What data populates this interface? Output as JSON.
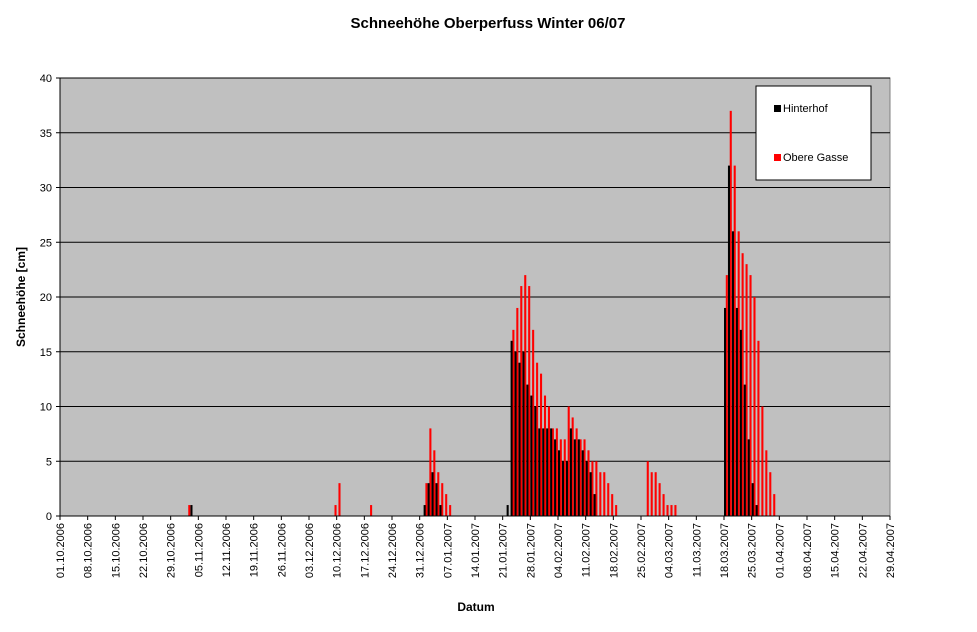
{
  "chart_data": {
    "type": "bar",
    "title": "Schneehöhe Oberperfuss Winter 06/07",
    "xlabel": "Datum",
    "ylabel": "Schneehöhe [cm]",
    "ylim": [
      0,
      40
    ],
    "yticks": [
      0,
      5,
      10,
      15,
      20,
      25,
      30,
      35,
      40
    ],
    "grid": true,
    "legend_position": "top-right",
    "x_start": "01.10.2006",
    "x_end": "29.04.2007",
    "x_ticks": [
      "01.10.2006",
      "08.10.2006",
      "15.10.2006",
      "22.10.2006",
      "29.10.2006",
      "05.11.2006",
      "12.11.2006",
      "19.11.2006",
      "26.11.2006",
      "03.12.2006",
      "10.12.2006",
      "17.12.2006",
      "24.12.2006",
      "31.12.2006",
      "07.01.2007",
      "14.01.2007",
      "21.01.2007",
      "28.01.2007",
      "04.02.2007",
      "11.02.2007",
      "18.02.2007",
      "25.02.2007",
      "04.03.2007",
      "11.03.2007",
      "18.03.2007",
      "25.03.2007",
      "01.04.2007",
      "08.04.2007",
      "15.04.2007",
      "22.04.2007",
      "29.04.2007"
    ],
    "series": [
      {
        "name": "Hinterhof",
        "color": "#000000",
        "points": [
          [
            "03.11.2006",
            1
          ],
          [
            "01.01.2007",
            1
          ],
          [
            "02.01.2007",
            3
          ],
          [
            "03.01.2007",
            4
          ],
          [
            "04.01.2007",
            3
          ],
          [
            "05.01.2007",
            1
          ],
          [
            "22.01.2007",
            1
          ],
          [
            "23.01.2007",
            16
          ],
          [
            "24.01.2007",
            15
          ],
          [
            "25.01.2007",
            14
          ],
          [
            "26.01.2007",
            15
          ],
          [
            "27.01.2007",
            12
          ],
          [
            "28.01.2007",
            11
          ],
          [
            "29.01.2007",
            10
          ],
          [
            "30.01.2007",
            8
          ],
          [
            "31.01.2007",
            8
          ],
          [
            "01.02.2007",
            8
          ],
          [
            "02.02.2007",
            8
          ],
          [
            "03.02.2007",
            7
          ],
          [
            "04.02.2007",
            6
          ],
          [
            "05.02.2007",
            5
          ],
          [
            "06.02.2007",
            5
          ],
          [
            "07.02.2007",
            8
          ],
          [
            "08.02.2007",
            7
          ],
          [
            "09.02.2007",
            7
          ],
          [
            "10.02.2007",
            6
          ],
          [
            "11.02.2007",
            5
          ],
          [
            "12.02.2007",
            4
          ],
          [
            "13.02.2007",
            2
          ],
          [
            "18.03.2007",
            19
          ],
          [
            "19.03.2007",
            32
          ],
          [
            "20.03.2007",
            26
          ],
          [
            "21.03.2007",
            19
          ],
          [
            "22.03.2007",
            17
          ],
          [
            "23.03.2007",
            12
          ],
          [
            "24.03.2007",
            7
          ],
          [
            "25.03.2007",
            3
          ],
          [
            "26.03.2007",
            1
          ]
        ]
      },
      {
        "name": "Obere Gasse",
        "color": "#ff0000",
        "points": [
          [
            "02.11.2006",
            1
          ],
          [
            "09.12.2006",
            1
          ],
          [
            "10.12.2006",
            3
          ],
          [
            "18.12.2006",
            1
          ],
          [
            "01.01.2007",
            3
          ],
          [
            "02.01.2007",
            8
          ],
          [
            "03.01.2007",
            6
          ],
          [
            "04.01.2007",
            4
          ],
          [
            "05.01.2007",
            3
          ],
          [
            "06.01.2007",
            2
          ],
          [
            "07.01.2007",
            1
          ],
          [
            "23.01.2007",
            17
          ],
          [
            "24.01.2007",
            19
          ],
          [
            "25.01.2007",
            21
          ],
          [
            "26.01.2007",
            22
          ],
          [
            "27.01.2007",
            21
          ],
          [
            "28.01.2007",
            17
          ],
          [
            "29.01.2007",
            14
          ],
          [
            "30.01.2007",
            13
          ],
          [
            "31.01.2007",
            11
          ],
          [
            "01.02.2007",
            10
          ],
          [
            "02.02.2007",
            8
          ],
          [
            "03.02.2007",
            8
          ],
          [
            "04.02.2007",
            7
          ],
          [
            "05.02.2007",
            7
          ],
          [
            "06.02.2007",
            10
          ],
          [
            "07.02.2007",
            9
          ],
          [
            "08.02.2007",
            8
          ],
          [
            "09.02.2007",
            7
          ],
          [
            "10.02.2007",
            7
          ],
          [
            "11.02.2007",
            6
          ],
          [
            "12.02.2007",
            5
          ],
          [
            "13.02.2007",
            5
          ],
          [
            "14.02.2007",
            4
          ],
          [
            "15.02.2007",
            4
          ],
          [
            "16.02.2007",
            3
          ],
          [
            "17.02.2007",
            2
          ],
          [
            "18.02.2007",
            1
          ],
          [
            "26.02.2007",
            5
          ],
          [
            "27.02.2007",
            4
          ],
          [
            "28.02.2007",
            4
          ],
          [
            "01.03.2007",
            3
          ],
          [
            "02.03.2007",
            2
          ],
          [
            "03.03.2007",
            1
          ],
          [
            "04.03.2007",
            1
          ],
          [
            "05.03.2007",
            1
          ],
          [
            "18.03.2007",
            22
          ],
          [
            "19.03.2007",
            37
          ],
          [
            "20.03.2007",
            32
          ],
          [
            "21.03.2007",
            26
          ],
          [
            "22.03.2007",
            24
          ],
          [
            "23.03.2007",
            23
          ],
          [
            "24.03.2007",
            22
          ],
          [
            "25.03.2007",
            20
          ],
          [
            "26.03.2007",
            16
          ],
          [
            "27.03.2007",
            10
          ],
          [
            "28.03.2007",
            6
          ],
          [
            "29.03.2007",
            4
          ],
          [
            "30.03.2007",
            2
          ]
        ]
      }
    ]
  }
}
